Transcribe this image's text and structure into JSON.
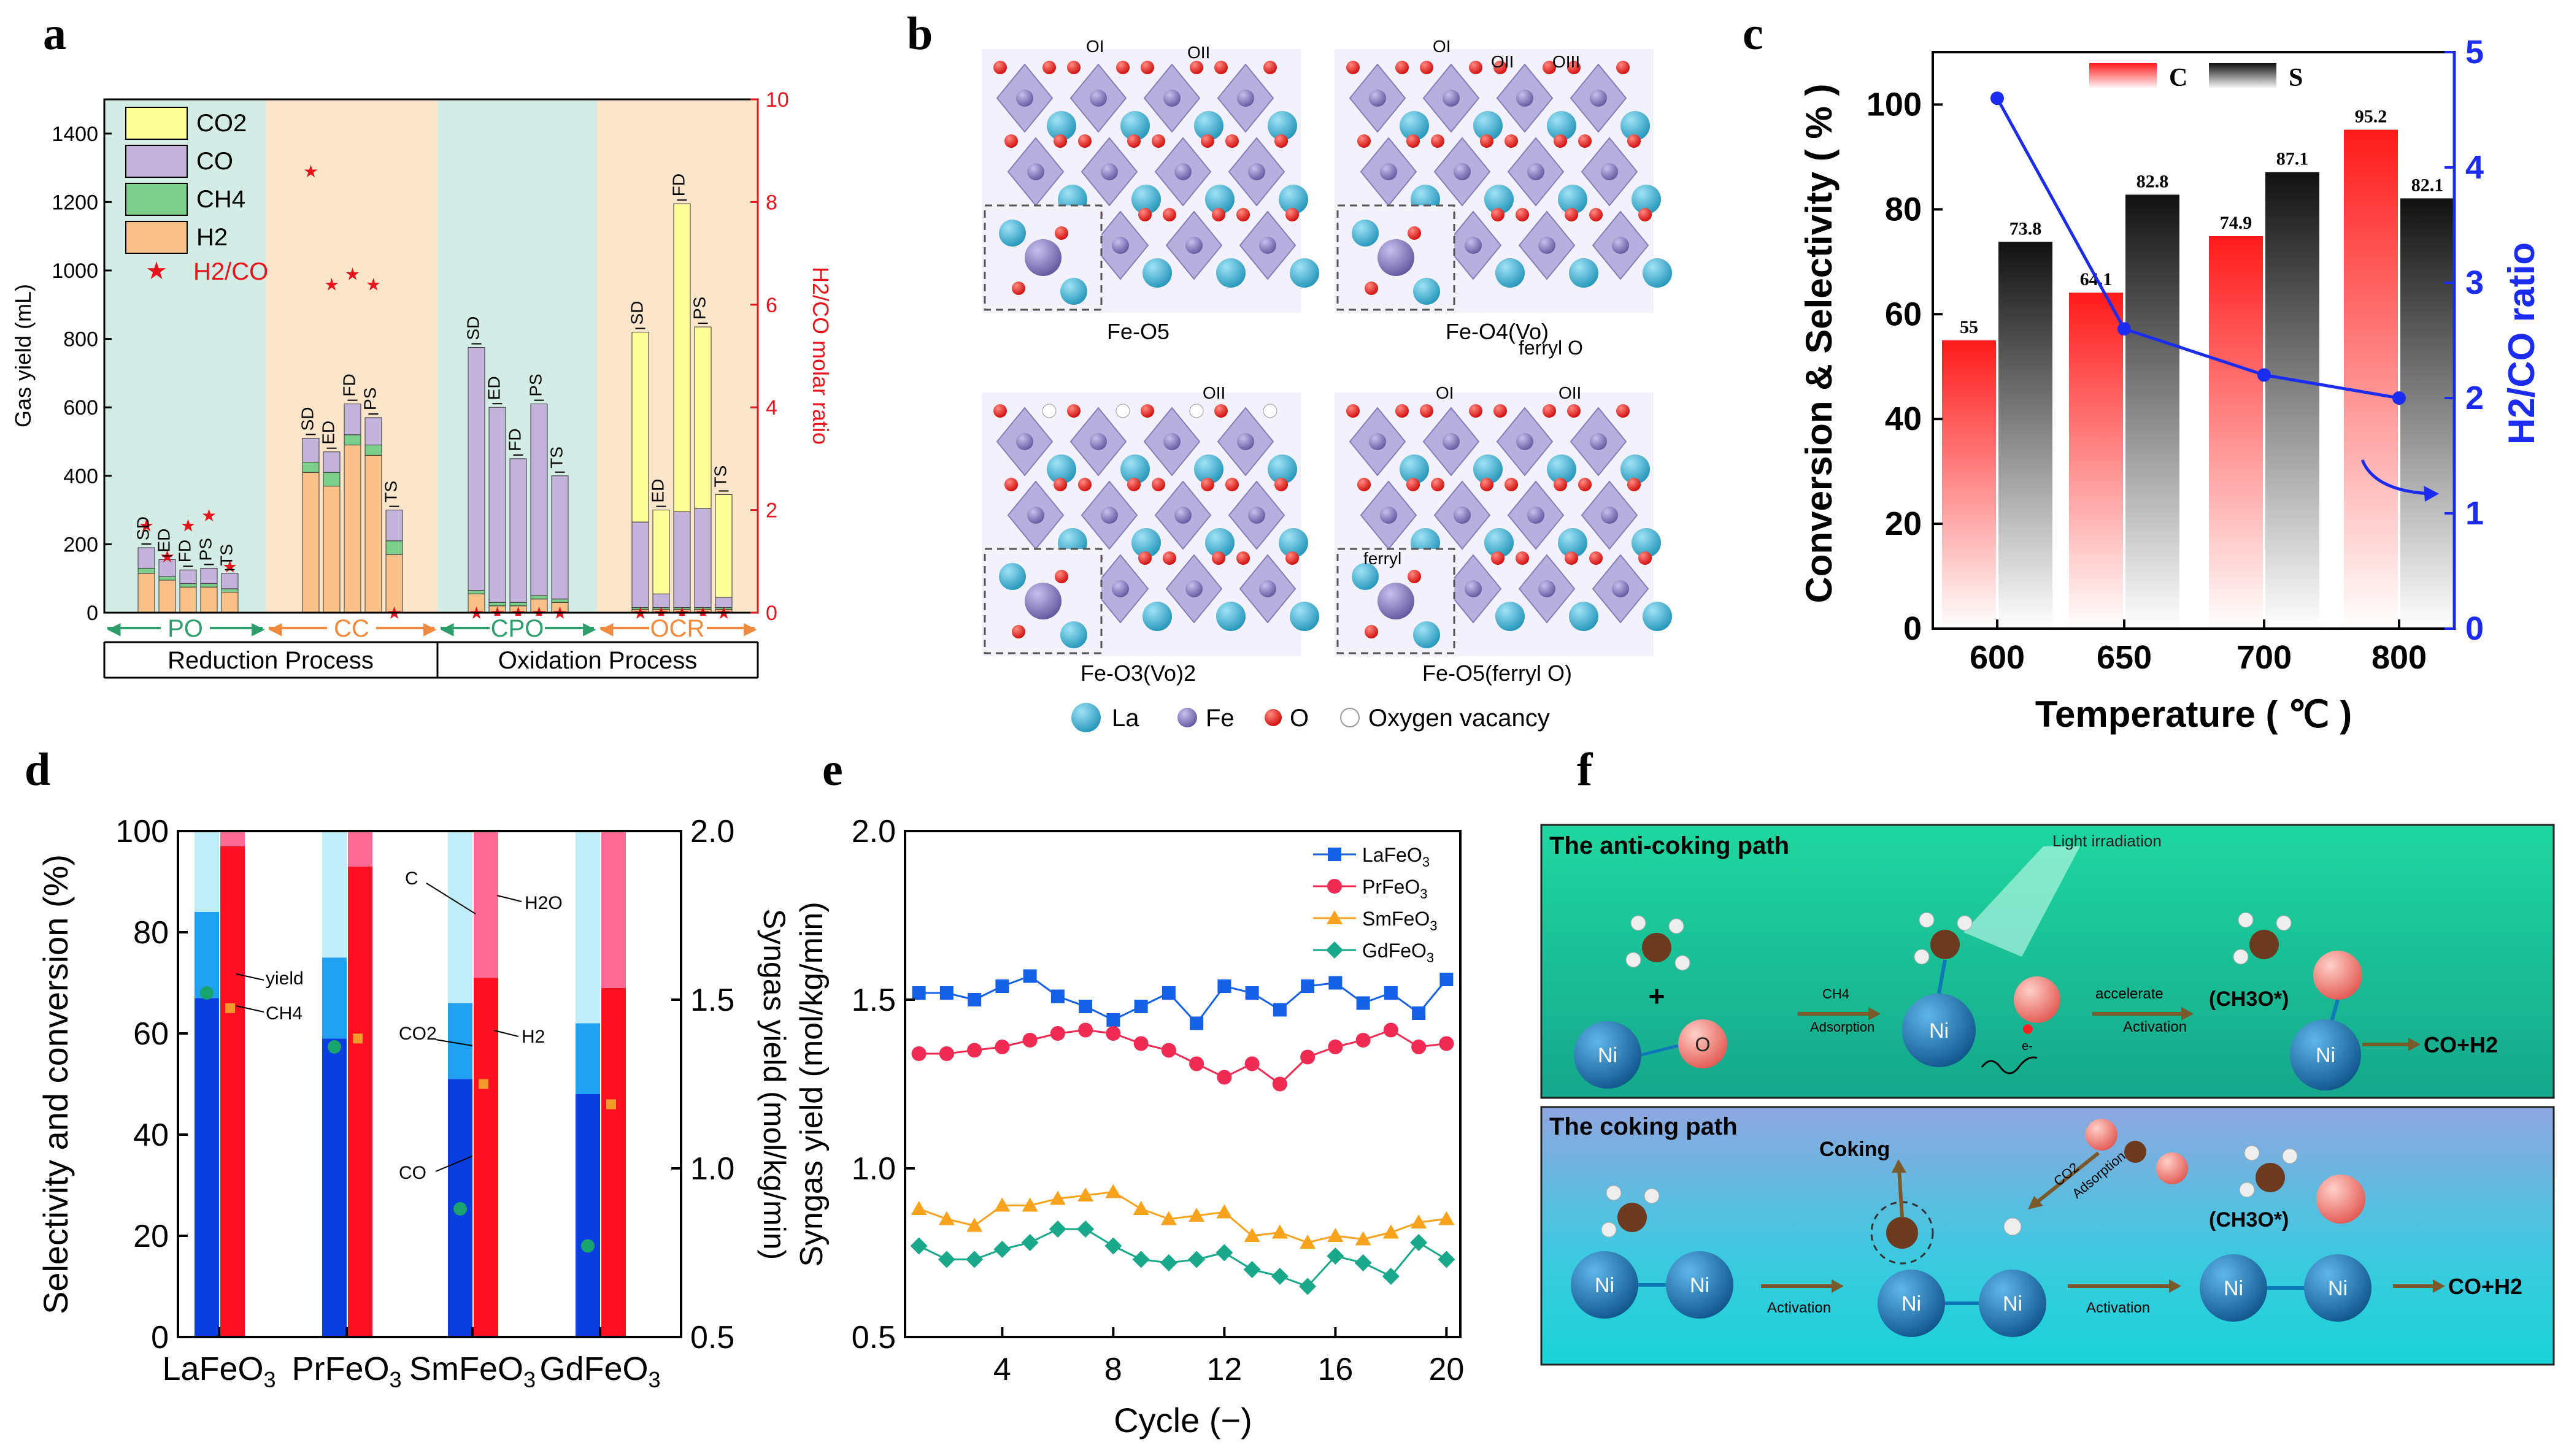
{
  "panels": {
    "a": {
      "letter": "a",
      "ylabel_left": "Gas yield (mL)",
      "ylabel_right": "H2/CO molar ratio",
      "yticks_left": [
        "0",
        "200",
        "400",
        "600",
        "800",
        "1000",
        "1200",
        "1400"
      ],
      "yticks_right": [
        "0",
        "2",
        "4",
        "6",
        "8",
        "10"
      ],
      "legend": [
        "CO2",
        "CO",
        "CH4",
        "H2",
        "H2/CO"
      ],
      "regions": [
        "PO",
        "CC",
        "CPO",
        "OCR"
      ],
      "processes": [
        "Reduction Process",
        "Oxidation Process"
      ],
      "colors": {
        "co2": "#ffff99",
        "co": "#c3b3da",
        "ch4": "#7ccf8a",
        "h2": "#f9c187",
        "ratio": "#e8141b",
        "po_bg": "#d4ece6",
        "cc_bg": "#fbe6cc",
        "arrow_green": "#2e9d6c",
        "arrow_orange": "#f08a3e"
      }
    },
    "b": {
      "letter": "b",
      "structures": [
        "Fe-O5",
        "Fe-O4(Vo)",
        "Fe-O3(Vo)2",
        "Fe-O5(ferryl O)"
      ],
      "site_labels": [
        "OI",
        "OII",
        "OIII",
        "ferryl O",
        "ferryl"
      ],
      "legend": [
        "La",
        "Fe",
        "O",
        "Oxygen vacancy"
      ],
      "colors": {
        "la": "#27a6c8",
        "fe": "#7a6fb0",
        "o": "#e81818",
        "vacancy": "#ffffff"
      }
    },
    "c": {
      "letter": "c",
      "legend_c": "C",
      "legend_s": "S",
      "ylabel_left": "Conversion & Selectivity ( % )",
      "ylabel_right": "H2/CO ratio",
      "xlabel": "Temperature ( ℃ )",
      "yticks_left": [
        "0",
        "20",
        "40",
        "60",
        "80",
        "100"
      ],
      "yticks_right": [
        "0",
        "1",
        "2",
        "3",
        "4",
        "5"
      ],
      "bar_labels_c": [
        "55",
        "64.1",
        "74.9",
        "95.2"
      ],
      "bar_labels_s": [
        "73.8",
        "82.8",
        "87.1",
        "82.1"
      ]
    },
    "d": {
      "letter": "d",
      "ylabel_left": "Selectivity and conversion (%)",
      "ylabel_right": "Syngas yield (mol/kg/min)",
      "yticks_left": [
        "0",
        "20",
        "40",
        "60",
        "80",
        "100"
      ],
      "yticks_right": [
        "0.5",
        "1.0",
        "1.5",
        "2.0"
      ],
      "annotations": [
        "yield",
        "CH4",
        "C",
        "H2O",
        "CO2",
        "H2",
        "CO"
      ]
    },
    "e": {
      "letter": "e",
      "ylabel": "Syngas yield (mol/kg/min)",
      "xlabel": "Cycle (−)",
      "yticks": [
        "0.5",
        "1.0",
        "1.5",
        "2.0"
      ],
      "xticks": [
        "4",
        "8",
        "12",
        "16",
        "20"
      ]
    },
    "f": {
      "letter": "f",
      "top_title": "The anti-coking path",
      "bottom_title": "The coking path",
      "top_labels": [
        "Light irradiation",
        "CH4",
        "Adsorption",
        "accelerate",
        "Activation",
        "(CH3O*)",
        "CO+H2",
        "Ni",
        "O",
        "e-"
      ],
      "bottom_labels": [
        "Coking",
        "CO2",
        "Adsorption",
        "Activation",
        "Activation",
        "(CH3O*)",
        "CO+H2",
        "Ni"
      ],
      "colors": {
        "top_bg": "#19c99a",
        "bottom_bg": "#2fc8d8",
        "ni": "#0f78b8",
        "arrow": "#7a5a2a"
      }
    }
  },
  "chart_data": [
    {
      "type": "bar",
      "panel": "a",
      "stacked": true,
      "categories": [
        "SD",
        "ED",
        "FD",
        "PS",
        "TS"
      ],
      "groups": [
        "PO",
        "CC",
        "CPO",
        "OCR"
      ],
      "series": [
        {
          "name": "H2",
          "values": [
            [
              115,
              95,
              75,
              75,
              60
            ],
            [
              410,
              370,
              490,
              460,
              170
            ],
            [
              55,
              20,
              20,
              40,
              30
            ],
            [
              10,
              10,
              10,
              10,
              10
            ]
          ]
        },
        {
          "name": "CH4",
          "values": [
            [
              15,
              10,
              10,
              10,
              10
            ],
            [
              30,
              40,
              30,
              30,
              40
            ],
            [
              10,
              10,
              10,
              10,
              10
            ],
            [
              5,
              5,
              5,
              5,
              5
            ]
          ]
        },
        {
          "name": "CO",
          "values": [
            [
              60,
              50,
              40,
              45,
              45
            ],
            [
              70,
              60,
              90,
              80,
              90
            ],
            [
              710,
              570,
              420,
              560,
              360
            ],
            [
              250,
              40,
              280,
              290,
              30
            ]
          ]
        },
        {
          "name": "CO2",
          "values": [
            [
              0,
              0,
              0,
              0,
              0
            ],
            [
              0,
              0,
              0,
              0,
              0
            ],
            [
              0,
              0,
              0,
              0,
              0
            ],
            [
              555,
              245,
              900,
              530,
              300
            ]
          ]
        },
        {
          "name": "H2/CO",
          "values": [
            [
              1.7,
              1.1,
              1.7,
              1.9,
              0.9
            ],
            [
              8.6,
              6.4,
              6.6,
              6.4,
              0
            ],
            [
              0,
              0,
              0,
              0,
              0
            ],
            [
              0,
              0,
              0,
              0,
              0
            ]
          ]
        }
      ],
      "ylim": [
        0,
        1500
      ],
      "y2lim": [
        0,
        10
      ]
    },
    {
      "type": "bar",
      "panel": "c",
      "categories": [
        "600",
        "650",
        "700",
        "800"
      ],
      "series": [
        {
          "name": "C",
          "values": [
            55,
            64.1,
            74.9,
            95.2
          ]
        },
        {
          "name": "S",
          "values": [
            73.8,
            82.8,
            87.1,
            82.1
          ]
        },
        {
          "name": "H2/CO",
          "type": "line",
          "axis": "right",
          "values": [
            4.6,
            2.6,
            2.2,
            2.0
          ]
        }
      ],
      "ylim": [
        0,
        110
      ],
      "y2lim": [
        0,
        5
      ]
    },
    {
      "type": "bar",
      "panel": "d",
      "categories": [
        "LaFeO3",
        "PrFeO3",
        "SmFeO3",
        "GdFeO3"
      ],
      "series": [
        {
          "name": "CO",
          "values": [
            67,
            59,
            51,
            48
          ]
        },
        {
          "name": "CO2",
          "values": [
            17,
            16,
            15,
            14
          ]
        },
        {
          "name": "C",
          "values": [
            16,
            25,
            34,
            38
          ]
        },
        {
          "name": "H2",
          "values": [
            97,
            93,
            71,
            69
          ]
        },
        {
          "name": "H2O",
          "values": [
            3,
            7,
            29,
            31
          ]
        },
        {
          "name": "CH4",
          "values": [
            65,
            59,
            50,
            46
          ]
        },
        {
          "name": "yield",
          "axis": "right",
          "values": [
            1.52,
            1.36,
            0.88,
            0.77
          ]
        }
      ],
      "ylim": [
        0,
        100
      ],
      "y2lim": [
        0.5,
        2.0
      ]
    },
    {
      "type": "line",
      "panel": "e",
      "x": [
        1,
        2,
        3,
        4,
        5,
        6,
        7,
        8,
        9,
        10,
        11,
        12,
        13,
        14,
        15,
        16,
        17,
        18,
        19,
        20
      ],
      "series": [
        {
          "name": "LaFeO3",
          "values": [
            1.52,
            1.52,
            1.5,
            1.54,
            1.57,
            1.51,
            1.48,
            1.44,
            1.48,
            1.52,
            1.43,
            1.54,
            1.52,
            1.47,
            1.54,
            1.55,
            1.49,
            1.52,
            1.46,
            1.56
          ]
        },
        {
          "name": "PrFeO3",
          "values": [
            1.34,
            1.34,
            1.35,
            1.36,
            1.38,
            1.4,
            1.41,
            1.4,
            1.37,
            1.35,
            1.31,
            1.27,
            1.31,
            1.25,
            1.33,
            1.36,
            1.38,
            1.41,
            1.36,
            1.37
          ]
        },
        {
          "name": "SmFeO3",
          "values": [
            0.88,
            0.85,
            0.83,
            0.89,
            0.89,
            0.91,
            0.92,
            0.93,
            0.88,
            0.85,
            0.86,
            0.87,
            0.8,
            0.81,
            0.78,
            0.8,
            0.79,
            0.81,
            0.84,
            0.85
          ]
        },
        {
          "name": "GdFeO3",
          "values": [
            0.77,
            0.73,
            0.73,
            0.76,
            0.78,
            0.82,
            0.82,
            0.77,
            0.73,
            0.72,
            0.73,
            0.75,
            0.7,
            0.68,
            0.65,
            0.74,
            0.72,
            0.68,
            0.78,
            0.73
          ]
        }
      ],
      "xlim": [
        0.5,
        20.5
      ],
      "ylim": [
        0.5,
        2.0
      ]
    }
  ]
}
